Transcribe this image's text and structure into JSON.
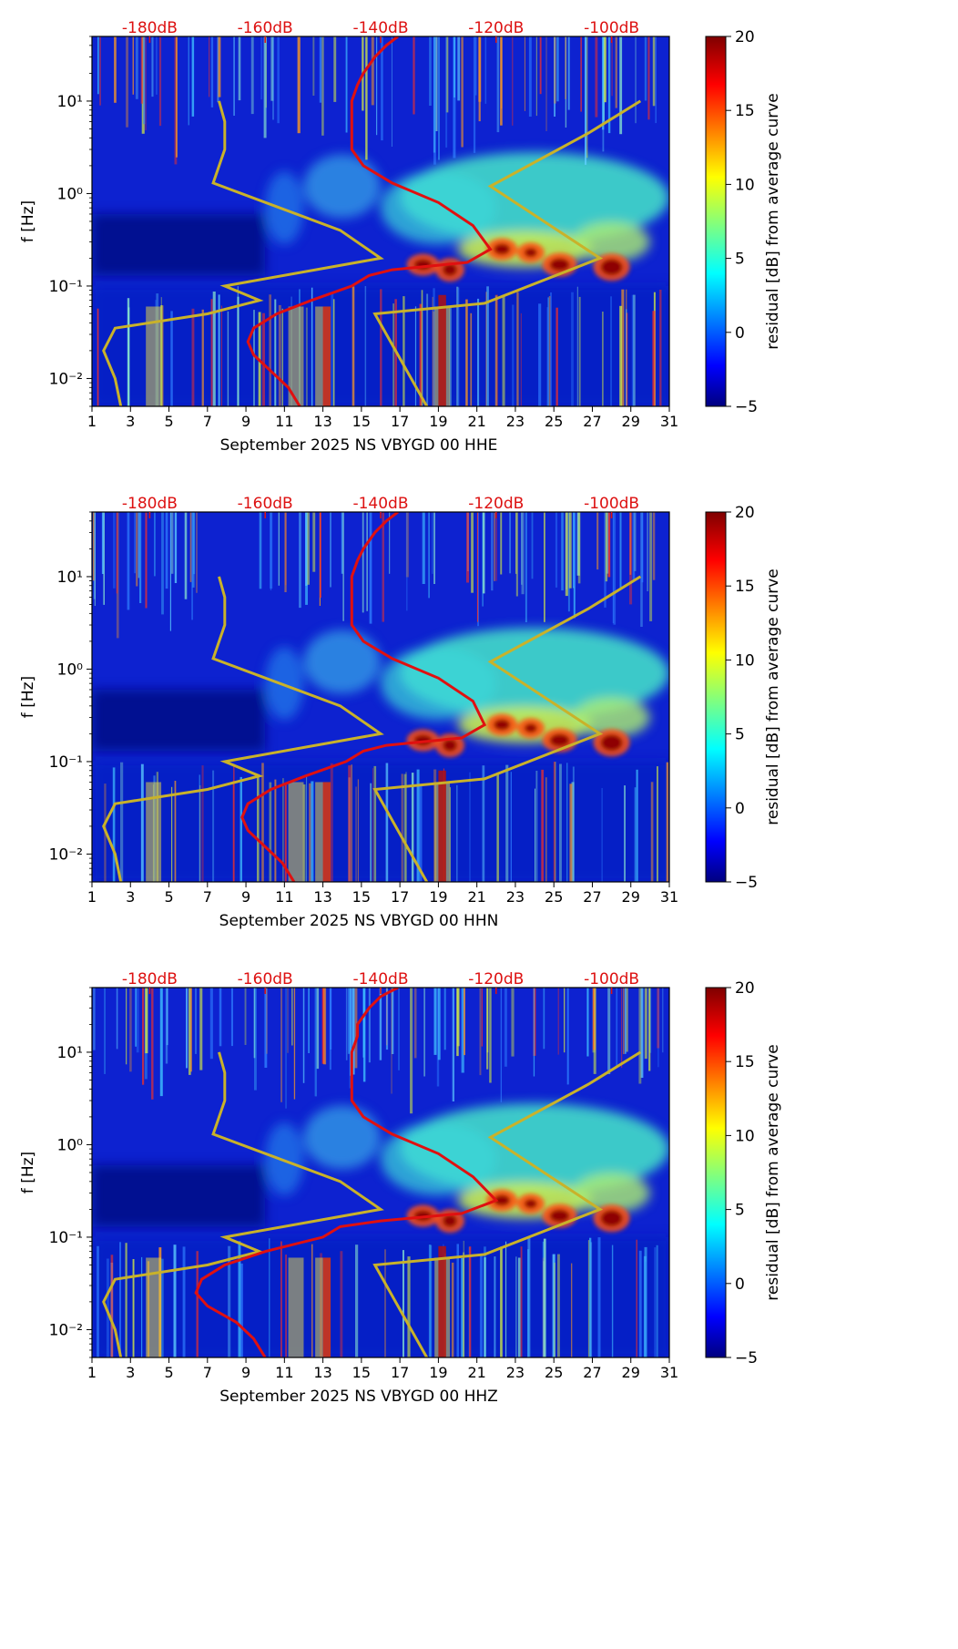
{
  "colors": {
    "db_label": "#dd1111",
    "average_curve": "#e01010",
    "noise_model": "#c9b22a",
    "axis": "#000000"
  },
  "chart_data": [
    {
      "type": "heatmap",
      "channel": "HHE",
      "xlabel": "September 2025 NS VBYGD 00 HHE",
      "ylabel": "f [Hz]",
      "x_ticks": [
        "1",
        "3",
        "5",
        "7",
        "9",
        "11",
        "13",
        "15",
        "17",
        "19",
        "21",
        "23",
        "25",
        "27",
        "29",
        "31"
      ],
      "xlim": [
        1,
        31
      ],
      "ylim": [
        0.005,
        50
      ],
      "y_ticks": [
        {
          "label": "10⁻²",
          "value": 0.01
        },
        {
          "label": "10⁻¹",
          "value": 0.1
        },
        {
          "label": "10⁰",
          "value": 1
        },
        {
          "label": "10¹",
          "value": 10
        }
      ],
      "db_axis": {
        "labels": [
          "-180dB",
          "-160dB",
          "-140dB",
          "-120dB",
          "-100dB"
        ],
        "values": [
          -180,
          -160,
          -140,
          -120,
          -100
        ],
        "range": [
          -190,
          -90
        ]
      },
      "colorbar": {
        "label": "residual [dB] from average curve",
        "ticks": [
          "−5",
          "0",
          "5",
          "10",
          "15",
          "20"
        ],
        "range": [
          -5,
          20
        ]
      },
      "average_curve_db": [
        [
          -137,
          50
        ],
        [
          -139,
          40
        ],
        [
          -141,
          30
        ],
        [
          -143,
          20
        ],
        [
          -144,
          15
        ],
        [
          -145,
          10
        ],
        [
          -145,
          6
        ],
        [
          -145,
          3
        ],
        [
          -143,
          2
        ],
        [
          -138,
          1.3
        ],
        [
          -130,
          0.8
        ],
        [
          -124,
          0.45
        ],
        [
          -121,
          0.25
        ],
        [
          -125,
          0.18
        ],
        [
          -138,
          0.15
        ],
        [
          -142,
          0.13
        ],
        [
          -145,
          0.1
        ],
        [
          -152,
          0.07
        ],
        [
          -158,
          0.05
        ],
        [
          -162,
          0.035
        ],
        [
          -163,
          0.025
        ],
        [
          -162,
          0.018
        ],
        [
          -159,
          0.012
        ],
        [
          -156,
          0.008
        ],
        [
          -154,
          0.005
        ]
      ],
      "noise_model_db": [
        [
          -168,
          10
        ],
        [
          -167,
          6
        ],
        [
          -167,
          3
        ],
        [
          -169,
          1.3
        ],
        [
          -147,
          0.4
        ],
        [
          -140,
          0.2
        ],
        [
          -167,
          0.1
        ],
        [
          -161,
          0.07
        ],
        [
          -170,
          0.05
        ],
        [
          -186,
          0.035
        ],
        [
          -188,
          0.02
        ],
        [
          -186,
          0.01
        ],
        [
          -185,
          0.005
        ]
      ],
      "noise_model_high_db": [
        [
          -132,
          0.005
        ],
        [
          -141,
          0.05
        ],
        [
          -122,
          0.065
        ],
        [
          -102,
          0.2
        ],
        [
          -121,
          1.2
        ],
        [
          -104,
          4.5
        ],
        [
          -95,
          10
        ]
      ]
    },
    {
      "type": "heatmap",
      "channel": "HHN",
      "xlabel": "September 2025 NS VBYGD 00 HHN",
      "ylabel": "f [Hz]",
      "x_ticks": [
        "1",
        "3",
        "5",
        "7",
        "9",
        "11",
        "13",
        "15",
        "17",
        "19",
        "21",
        "23",
        "25",
        "27",
        "29",
        "31"
      ],
      "xlim": [
        1,
        31
      ],
      "ylim": [
        0.005,
        50
      ],
      "y_ticks": [
        {
          "label": "10⁻²",
          "value": 0.01
        },
        {
          "label": "10⁻¹",
          "value": 0.1
        },
        {
          "label": "10⁰",
          "value": 1
        },
        {
          "label": "10¹",
          "value": 10
        }
      ],
      "db_axis": {
        "labels": [
          "-180dB",
          "-160dB",
          "-140dB",
          "-120dB",
          "-100dB"
        ],
        "values": [
          -180,
          -160,
          -140,
          -120,
          -100
        ],
        "range": [
          -190,
          -90
        ]
      },
      "colorbar": {
        "label": "residual [dB] from average curve",
        "ticks": [
          "−5",
          "0",
          "5",
          "10",
          "15",
          "20"
        ],
        "range": [
          -5,
          20
        ]
      },
      "average_curve_db": [
        [
          -137,
          50
        ],
        [
          -139,
          40
        ],
        [
          -141,
          30
        ],
        [
          -143,
          20
        ],
        [
          -144,
          15
        ],
        [
          -145,
          10
        ],
        [
          -145,
          6
        ],
        [
          -145,
          3
        ],
        [
          -143,
          2
        ],
        [
          -138,
          1.3
        ],
        [
          -130,
          0.8
        ],
        [
          -124,
          0.45
        ],
        [
          -122,
          0.25
        ],
        [
          -126,
          0.18
        ],
        [
          -139,
          0.15
        ],
        [
          -143,
          0.13
        ],
        [
          -146,
          0.1
        ],
        [
          -153,
          0.07
        ],
        [
          -159,
          0.05
        ],
        [
          -163,
          0.035
        ],
        [
          -164,
          0.025
        ],
        [
          -163,
          0.018
        ],
        [
          -160,
          0.012
        ],
        [
          -157,
          0.008
        ],
        [
          -155,
          0.005
        ]
      ],
      "noise_model_db": [
        [
          -168,
          10
        ],
        [
          -167,
          6
        ],
        [
          -167,
          3
        ],
        [
          -169,
          1.3
        ],
        [
          -147,
          0.4
        ],
        [
          -140,
          0.2
        ],
        [
          -167,
          0.1
        ],
        [
          -161,
          0.07
        ],
        [
          -170,
          0.05
        ],
        [
          -186,
          0.035
        ],
        [
          -188,
          0.02
        ],
        [
          -186,
          0.01
        ],
        [
          -185,
          0.005
        ]
      ],
      "noise_model_high_db": [
        [
          -132,
          0.005
        ],
        [
          -141,
          0.05
        ],
        [
          -122,
          0.065
        ],
        [
          -102,
          0.2
        ],
        [
          -121,
          1.2
        ],
        [
          -104,
          4.5
        ],
        [
          -95,
          10
        ]
      ]
    },
    {
      "type": "heatmap",
      "channel": "HHZ",
      "xlabel": "September 2025 NS VBYGD 00 HHZ",
      "ylabel": "f [Hz]",
      "x_ticks": [
        "1",
        "3",
        "5",
        "7",
        "9",
        "11",
        "13",
        "15",
        "17",
        "19",
        "21",
        "23",
        "25",
        "27",
        "29",
        "31"
      ],
      "xlim": [
        1,
        31
      ],
      "ylim": [
        0.005,
        50
      ],
      "y_ticks": [
        {
          "label": "10⁻²",
          "value": 0.01
        },
        {
          "label": "10⁻¹",
          "value": 0.1
        },
        {
          "label": "10⁰",
          "value": 1
        },
        {
          "label": "10¹",
          "value": 10
        }
      ],
      "db_axis": {
        "labels": [
          "-180dB",
          "-160dB",
          "-140dB",
          "-120dB",
          "-100dB"
        ],
        "values": [
          -180,
          -160,
          -140,
          -120,
          -100
        ],
        "range": [
          -190,
          -90
        ]
      },
      "colorbar": {
        "label": "residual [dB] from average curve",
        "ticks": [
          "−5",
          "0",
          "5",
          "10",
          "15",
          "20"
        ],
        "range": [
          -5,
          20
        ]
      },
      "average_curve_db": [
        [
          -137,
          50
        ],
        [
          -140,
          40
        ],
        [
          -142,
          30
        ],
        [
          -144,
          20
        ],
        [
          -144,
          15
        ],
        [
          -145,
          10
        ],
        [
          -145,
          6
        ],
        [
          -145,
          3
        ],
        [
          -143,
          2
        ],
        [
          -138,
          1.3
        ],
        [
          -130,
          0.8
        ],
        [
          -124,
          0.45
        ],
        [
          -120,
          0.25
        ],
        [
          -126,
          0.18
        ],
        [
          -140,
          0.15
        ],
        [
          -147,
          0.13
        ],
        [
          -150,
          0.1
        ],
        [
          -160,
          0.07
        ],
        [
          -167,
          0.05
        ],
        [
          -171,
          0.035
        ],
        [
          -172,
          0.025
        ],
        [
          -170,
          0.018
        ],
        [
          -165,
          0.012
        ],
        [
          -162,
          0.008
        ],
        [
          -160,
          0.005
        ]
      ],
      "noise_model_db": [
        [
          -168,
          10
        ],
        [
          -167,
          6
        ],
        [
          -167,
          3
        ],
        [
          -169,
          1.3
        ],
        [
          -147,
          0.4
        ],
        [
          -140,
          0.2
        ],
        [
          -167,
          0.1
        ],
        [
          -161,
          0.07
        ],
        [
          -170,
          0.05
        ],
        [
          -186,
          0.035
        ],
        [
          -188,
          0.02
        ],
        [
          -186,
          0.01
        ],
        [
          -185,
          0.005
        ]
      ],
      "noise_model_high_db": [
        [
          -132,
          0.005
        ],
        [
          -141,
          0.05
        ],
        [
          -122,
          0.065
        ],
        [
          -102,
          0.2
        ],
        [
          -121,
          1.2
        ],
        [
          -104,
          4.5
        ],
        [
          -95,
          10
        ]
      ]
    }
  ]
}
